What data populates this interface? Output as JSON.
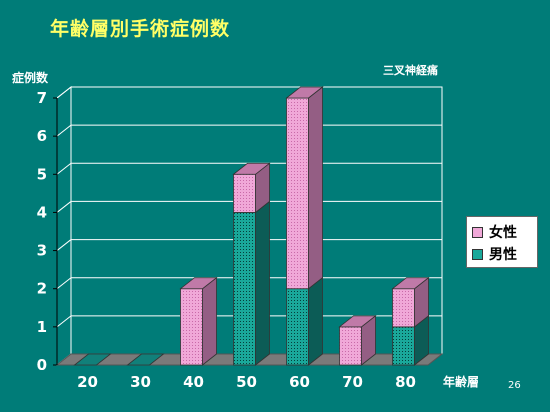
{
  "slide": {
    "title": "年齢層別手術症例数",
    "subtitle": "三叉神経痛",
    "page_number": "26"
  },
  "colors": {
    "background": "#007c78",
    "title": "#ffff66",
    "female_front": "#f0a8d8",
    "female_side": "#945e84",
    "female_top": "#c07aa8",
    "male_front": "#1aa89a",
    "male_side": "#0c5c56",
    "male_top": "#11807a",
    "floor": "#7a7a7a",
    "grid": "#ffffff"
  },
  "chart_data": {
    "type": "bar",
    "stacked": true,
    "three_d": true,
    "ylabel": "症例数",
    "xlabel": "年齢層",
    "ylim": [
      0,
      7
    ],
    "yticks": [
      0,
      1,
      2,
      3,
      4,
      5,
      6,
      7
    ],
    "categories": [
      "20",
      "30",
      "40",
      "50",
      "60",
      "70",
      "80"
    ],
    "series": [
      {
        "name": "男性",
        "values": [
          0,
          0,
          0,
          4,
          2,
          0,
          1
        ]
      },
      {
        "name": "女性",
        "values": [
          0,
          0,
          2,
          1,
          5,
          1,
          1
        ]
      }
    ],
    "grid": true,
    "legend_position": "right"
  }
}
